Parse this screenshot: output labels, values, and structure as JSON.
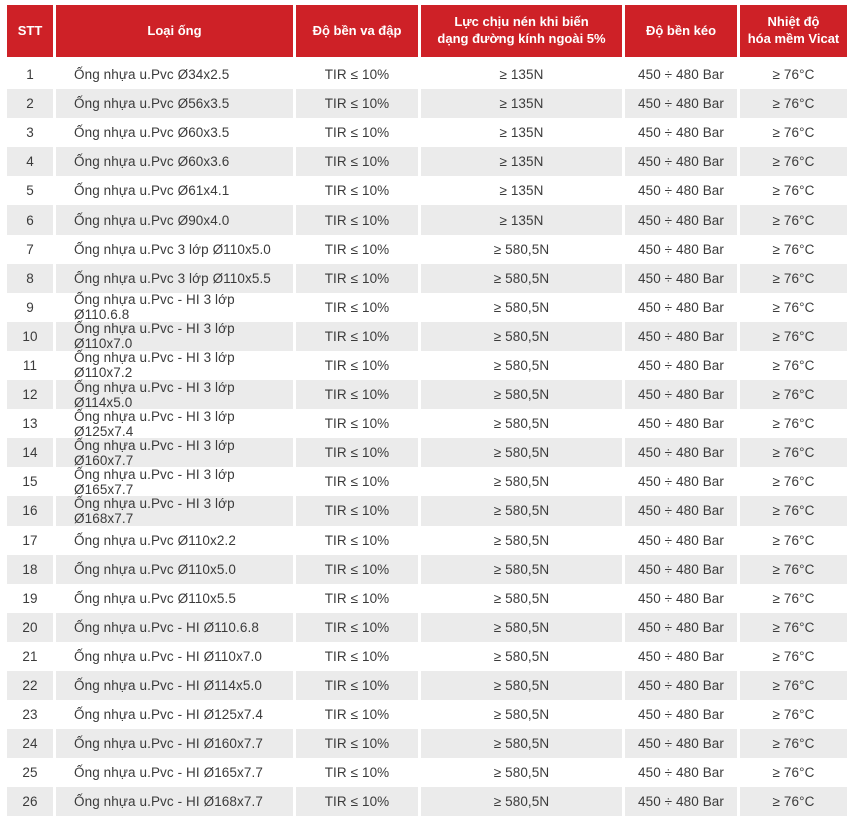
{
  "theme": {
    "header_bg": "#CE2127",
    "header_text": "#FFFFFF",
    "row_bg": "#FFFFFF",
    "row_alt_bg": "#EBEBEB",
    "body_text": "#3B3B3B"
  },
  "chart_data": {
    "type": "table",
    "title": "",
    "columns": [
      "STT",
      "Loại ống",
      "Độ bền va đập",
      "Lực chịu nén khi biến\ndạng đường kính ngoài 5%",
      "Độ bền kéo",
      "Nhiệt độ\nhóa mềm Vicat"
    ],
    "rows": [
      [
        "1",
        "Ống nhựa u.Pvc Ø34x2.5",
        "TIR ≤ 10%",
        "≥ 135N",
        "450 ÷ 480 Bar",
        "≥ 76°C"
      ],
      [
        "2",
        "Ống nhựa u.Pvc Ø56x3.5",
        "TIR ≤ 10%",
        "≥ 135N",
        "450 ÷ 480 Bar",
        "≥ 76°C"
      ],
      [
        "3",
        "Ống nhựa u.Pvc Ø60x3.5",
        "TIR ≤ 10%",
        "≥ 135N",
        "450 ÷ 480 Bar",
        "≥ 76°C"
      ],
      [
        "4",
        "Ống nhựa u.Pvc Ø60x3.6",
        "TIR ≤ 10%",
        "≥ 135N",
        "450 ÷ 480 Bar",
        "≥ 76°C"
      ],
      [
        "5",
        "Ống nhựa u.Pvc Ø61x4.1",
        "TIR ≤ 10%",
        "≥ 135N",
        "450 ÷ 480 Bar",
        "≥ 76°C"
      ],
      [
        "6",
        "Ống nhựa u.Pvc Ø90x4.0",
        "TIR ≤ 10%",
        "≥ 135N",
        "450 ÷ 480 Bar",
        "≥ 76°C"
      ],
      [
        "7",
        "Ống nhựa u.Pvc 3 lớp Ø110x5.0",
        "TIR ≤ 10%",
        "≥ 580,5N",
        "450 ÷ 480 Bar",
        "≥ 76°C"
      ],
      [
        "8",
        "Ống nhựa u.Pvc 3 lớp Ø110x5.5",
        "TIR ≤ 10%",
        "≥ 580,5N",
        "450 ÷ 480 Bar",
        "≥ 76°C"
      ],
      [
        "9",
        "Ống nhựa u.Pvc - HI 3 lớp Ø110.6.8",
        "TIR ≤ 10%",
        "≥ 580,5N",
        "450 ÷ 480 Bar",
        "≥ 76°C"
      ],
      [
        "10",
        "Ống nhựa u.Pvc - HI 3 lớp Ø110x7.0",
        "TIR ≤ 10%",
        "≥ 580,5N",
        "450 ÷ 480 Bar",
        "≥ 76°C"
      ],
      [
        "11",
        "Ống nhựa u.Pvc - HI 3 lớp Ø110x7.2",
        "TIR ≤ 10%",
        "≥ 580,5N",
        "450 ÷ 480 Bar",
        "≥ 76°C"
      ],
      [
        "12",
        "Ống nhựa u.Pvc - HI 3 lớp Ø114x5.0",
        "TIR ≤ 10%",
        "≥ 580,5N",
        "450 ÷ 480 Bar",
        "≥ 76°C"
      ],
      [
        "13",
        "Ống nhựa u.Pvc - HI 3 lớp Ø125x7.4",
        "TIR ≤ 10%",
        "≥ 580,5N",
        "450 ÷ 480 Bar",
        "≥ 76°C"
      ],
      [
        "14",
        "Ống nhựa u.Pvc - HI 3 lớp Ø160x7.7",
        "TIR ≤ 10%",
        "≥ 580,5N",
        "450 ÷ 480 Bar",
        "≥ 76°C"
      ],
      [
        "15",
        "Ống nhựa u.Pvc - HI 3 lớp Ø165x7.7",
        "TIR ≤ 10%",
        "≥ 580,5N",
        "450 ÷ 480 Bar",
        "≥ 76°C"
      ],
      [
        "16",
        "Ống nhựa u.Pvc - HI 3 lớp Ø168x7.7",
        "TIR ≤ 10%",
        "≥ 580,5N",
        "450 ÷ 480 Bar",
        "≥ 76°C"
      ],
      [
        "17",
        "Ống nhựa u.Pvc Ø110x2.2",
        "TIR ≤ 10%",
        "≥ 580,5N",
        "450 ÷ 480 Bar",
        "≥ 76°C"
      ],
      [
        "18",
        "Ống nhựa u.Pvc Ø110x5.0",
        "TIR ≤ 10%",
        "≥ 580,5N",
        "450 ÷ 480 Bar",
        "≥ 76°C"
      ],
      [
        "19",
        "Ống nhựa u.Pvc Ø110x5.5",
        "TIR ≤ 10%",
        "≥ 580,5N",
        "450 ÷ 480 Bar",
        "≥ 76°C"
      ],
      [
        "20",
        "Ống nhựa u.Pvc - HI Ø110.6.8",
        "TIR ≤ 10%",
        "≥ 580,5N",
        "450 ÷ 480 Bar",
        "≥ 76°C"
      ],
      [
        "21",
        "Ống nhựa u.Pvc - HI Ø110x7.0",
        "TIR ≤ 10%",
        "≥ 580,5N",
        "450 ÷ 480 Bar",
        "≥ 76°C"
      ],
      [
        "22",
        "Ống nhựa u.Pvc - HI Ø114x5.0",
        "TIR ≤ 10%",
        "≥ 580,5N",
        "450 ÷ 480 Bar",
        "≥ 76°C"
      ],
      [
        "23",
        "Ống nhựa u.Pvc - HI Ø125x7.4",
        "TIR ≤ 10%",
        "≥ 580,5N",
        "450 ÷ 480 Bar",
        "≥ 76°C"
      ],
      [
        "24",
        "Ống nhựa u.Pvc - HI Ø160x7.7",
        "TIR ≤ 10%",
        "≥ 580,5N",
        "450 ÷ 480 Bar",
        "≥ 76°C"
      ],
      [
        "25",
        "Ống nhựa u.Pvc - HI Ø165x7.7",
        "TIR ≤ 10%",
        "≥ 580,5N",
        "450 ÷ 480 Bar",
        "≥ 76°C"
      ],
      [
        "26",
        "Ống nhựa u.Pvc - HI Ø168x7.7",
        "TIR ≤ 10%",
        "≥ 580,5N",
        "450 ÷ 480 Bar",
        "≥ 76°C"
      ]
    ]
  }
}
